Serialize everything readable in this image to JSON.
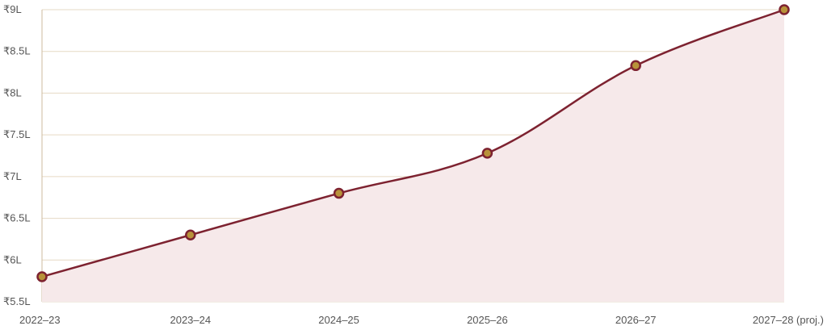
{
  "chart_data": {
    "type": "line",
    "title": "",
    "xlabel": "",
    "ylabel": "",
    "categories": [
      "2022–23",
      "2023–24",
      "2024–25",
      "2025–26",
      "2026–27",
      "2027–28 (proj.)"
    ],
    "series": [
      {
        "values": [
          5.8,
          6.3,
          6.8,
          7.28,
          8.33,
          9.0
        ]
      }
    ],
    "ylim": [
      5.5,
      9.0
    ],
    "yticks": [
      5.5,
      6.0,
      6.5,
      7.0,
      7.5,
      8.0,
      8.5,
      9.0
    ],
    "ytick_labels": [
      "₹5.5L",
      "₹6L",
      "₹6.5L",
      "₹7L",
      "₹7.5L",
      "₹8L",
      "₹8.5L",
      "₹9L"
    ],
    "grid": true,
    "legend": "none",
    "colors": {
      "line": "#7d2230",
      "area_fill": "#f6e9ea",
      "marker_fill": "#b8923a",
      "marker_stroke": "#7d2230",
      "grid": "#e6d9c4"
    }
  }
}
